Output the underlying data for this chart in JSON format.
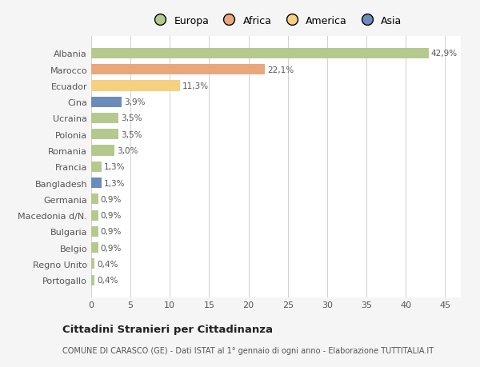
{
  "categories": [
    "Albania",
    "Marocco",
    "Ecuador",
    "Cina",
    "Ucraina",
    "Polonia",
    "Romania",
    "Francia",
    "Bangladesh",
    "Germania",
    "Macedonia d/N.",
    "Bulgaria",
    "Belgio",
    "Regno Unito",
    "Portogallo"
  ],
  "values": [
    42.9,
    22.1,
    11.3,
    3.9,
    3.5,
    3.5,
    3.0,
    1.3,
    1.3,
    0.9,
    0.9,
    0.9,
    0.9,
    0.4,
    0.4
  ],
  "labels": [
    "42,9%",
    "22,1%",
    "11,3%",
    "3,9%",
    "3,5%",
    "3,5%",
    "3,0%",
    "1,3%",
    "1,3%",
    "0,9%",
    "0,9%",
    "0,9%",
    "0,9%",
    "0,4%",
    "0,4%"
  ],
  "colors": [
    "#b5c98e",
    "#e8a87c",
    "#f5d080",
    "#6b8cba",
    "#b5c98e",
    "#b5c98e",
    "#b5c98e",
    "#b5c98e",
    "#6b8cba",
    "#b5c98e",
    "#b5c98e",
    "#b5c98e",
    "#b5c98e",
    "#b5c98e",
    "#b5c98e"
  ],
  "legend_labels": [
    "Europa",
    "Africa",
    "America",
    "Asia"
  ],
  "legend_colors": [
    "#b5c98e",
    "#e8a87c",
    "#f5d080",
    "#6b8cba"
  ],
  "title": "Cittadini Stranieri per Cittadinanza",
  "subtitle": "COMUNE DI CARASCO (GE) - Dati ISTAT al 1° gennaio di ogni anno - Elaborazione TUTTITALIA.IT",
  "xlim": [
    0,
    47
  ],
  "xticks": [
    0,
    5,
    10,
    15,
    20,
    25,
    30,
    35,
    40,
    45
  ],
  "bg_color": "#f5f5f5",
  "bar_bg_color": "#ffffff",
  "grid_color": "#d0d0d0"
}
